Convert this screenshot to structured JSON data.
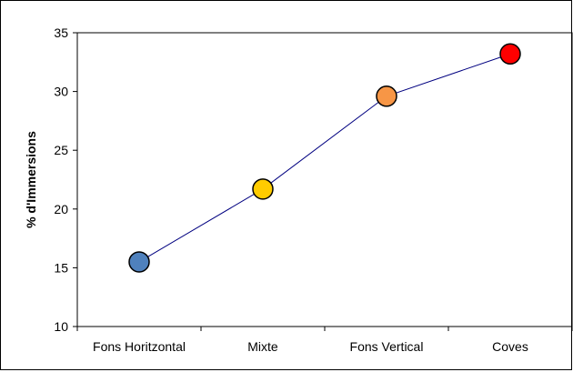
{
  "chart_data": {
    "type": "line",
    "title": "",
    "xlabel": "",
    "ylabel": "% d'Immersions",
    "categories": [
      "Fons Horitzontal",
      "Mixte",
      "Fons Vertical",
      "Coves"
    ],
    "series": [
      {
        "values": [
          15.5,
          21.7,
          29.6,
          33.2
        ],
        "line_color": "#000080",
        "marker_colors": [
          "#4F81BD",
          "#FFCC00",
          "#F79646",
          "#FF0000"
        ]
      }
    ],
    "ylim": [
      10,
      35
    ],
    "yticks": [
      10,
      15,
      20,
      25,
      30,
      35
    ],
    "grid": false,
    "legend": "none"
  }
}
